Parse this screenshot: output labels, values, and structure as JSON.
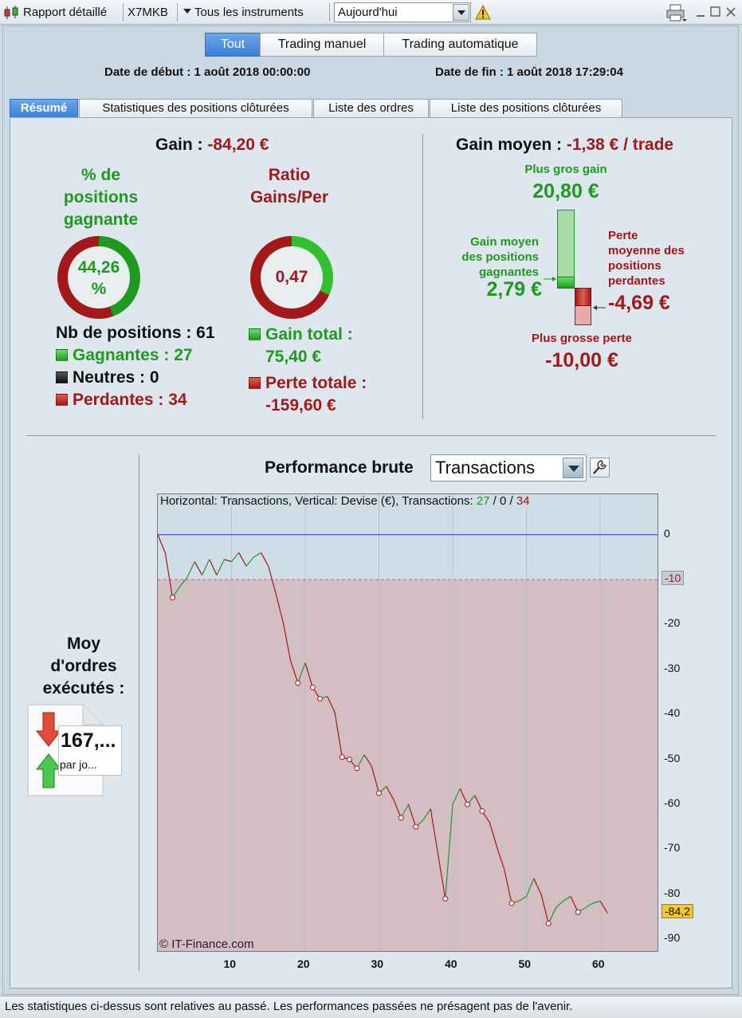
{
  "toolbar": {
    "report_label": "Rapport détaillé",
    "account": "X7MKB",
    "instruments": "Tous les instruments",
    "period_value": "Aujourd'hui"
  },
  "filters": [
    "Tout",
    "Trading manuel",
    "Trading automatique"
  ],
  "dates": {
    "start": "Date de début : 1 août 2018 00:00:00",
    "end": "Date de fin : 1 août 2018 17:29:04"
  },
  "tabs": [
    "Résumé",
    "Statistiques des positions clôturées",
    "Liste des ordres",
    "Liste des positions clôturées"
  ],
  "summary": {
    "gain_label": "Gain : ",
    "gain_value": "-84,20 €",
    "win_pct_title_1": "% de",
    "win_pct_title_2": "positions",
    "win_pct_title_3": "gagnante",
    "win_pct_value_1": "44,26",
    "win_pct_value_2": "%",
    "win_pct": 44.26,
    "ratio_title_1": "Ratio",
    "ratio_title_2": "Gains/Per",
    "ratio_value": "0,47",
    "ratio": 0.47,
    "positions_label": "Nb de positions : 61",
    "winners": "Gagnantes : 27",
    "neutral": "Neutres : 0",
    "losers": "Perdantes : 34",
    "total_gain_1": "Gain total :",
    "total_gain_2": "75,40 €",
    "total_loss_1": "Perte totale :",
    "total_loss_2": "-159,60 €"
  },
  "average": {
    "label": "Gain moyen : ",
    "value": "-1,38 € / trade",
    "biggest_gain_label": "Plus gros gain",
    "biggest_gain_value": "20,80 €",
    "avg_win_label_1": "Gain moyen",
    "avg_win_label_2": "des positions",
    "avg_win_label_3": "gagnantes",
    "avg_win_value": "2,79 €",
    "avg_loss_label_1": "Perte",
    "avg_loss_label_2": "moyenne des",
    "avg_loss_label_3": "positions",
    "avg_loss_label_4": "perdantes",
    "avg_loss_value": "-4,69 €",
    "biggest_loss_label": "Plus grosse perte",
    "biggest_loss_value": "-10,00 €"
  },
  "orders": {
    "label_1": "Moy",
    "label_2": "d'ordres",
    "label_3": "exécutés :",
    "value": "167,...",
    "unit": "par jo..."
  },
  "performance": {
    "title": "Performance brute",
    "mode": "Transactions",
    "header_prefix": "Horizontal: Transactions, Vertical: Devise (€), Transactions: ",
    "header_win": "27",
    "header_sep1": " / ",
    "header_neutral": "0",
    "header_sep2": " / ",
    "header_loss": "34",
    "watermark": "© IT-Finance.com",
    "threshold_tag": "-10",
    "last_tag": "-84,2"
  },
  "colors": {
    "gain": "#1f9a1f",
    "loss": "#a31818",
    "accent": "#3d7fd6",
    "loss_zone": "#d3bec4"
  },
  "chart_data": {
    "type": "line",
    "xlabel": "",
    "ylabel": "",
    "x_ticks": [
      10,
      20,
      30,
      40,
      50,
      60
    ],
    "y_ticks": [
      0,
      -10,
      -20,
      -30,
      -40,
      -50,
      -60,
      -70,
      -80,
      -90
    ],
    "xlim": [
      0,
      68
    ],
    "ylim": [
      -93,
      9
    ],
    "zero_line": 0,
    "loss_threshold": -10,
    "series": [
      {
        "values": [
          [
            0,
            0
          ],
          [
            1,
            -4
          ],
          [
            2,
            -14
          ],
          [
            3,
            -11.5
          ],
          [
            4,
            -9.5
          ],
          [
            5,
            -6
          ],
          [
            6,
            -9
          ],
          [
            7,
            -5.5
          ],
          [
            8,
            -9
          ],
          [
            9,
            -5.5
          ],
          [
            10,
            -6
          ],
          [
            11,
            -4
          ],
          [
            12,
            -7
          ],
          [
            13,
            -5
          ],
          [
            14,
            -4
          ],
          [
            15,
            -7
          ],
          [
            16,
            -13
          ],
          [
            17,
            -19.5
          ],
          [
            18,
            -28
          ],
          [
            19,
            -33
          ],
          [
            20,
            -28.5
          ],
          [
            21,
            -34
          ],
          [
            22,
            -36.5
          ],
          [
            23,
            -36
          ],
          [
            24,
            -39.5
          ],
          [
            25,
            -49.5
          ],
          [
            26,
            -50
          ],
          [
            27,
            -52
          ],
          [
            28,
            -49
          ],
          [
            29,
            -51.5
          ],
          [
            30,
            -57.5
          ],
          [
            31,
            -56
          ],
          [
            32,
            -59
          ],
          [
            33,
            -63
          ],
          [
            34,
            -60
          ],
          [
            35,
            -65
          ],
          [
            36,
            -63.5
          ],
          [
            37,
            -61
          ],
          [
            38,
            -71
          ],
          [
            39,
            -81
          ],
          [
            40,
            -60
          ],
          [
            41,
            -56.5
          ],
          [
            42,
            -60
          ],
          [
            43,
            -58
          ],
          [
            44,
            -61.5
          ],
          [
            45,
            -64
          ],
          [
            46,
            -69.5
          ],
          [
            47,
            -74.5
          ],
          [
            48,
            -82
          ],
          [
            49,
            -81.5
          ],
          [
            50,
            -80.5
          ],
          [
            51,
            -76.5
          ],
          [
            52,
            -80
          ],
          [
            53,
            -86.5
          ],
          [
            54,
            -83
          ],
          [
            55,
            -81.5
          ],
          [
            56,
            -80.5
          ],
          [
            57,
            -84
          ],
          [
            58,
            -83
          ],
          [
            59,
            -82
          ],
          [
            60,
            -81.5
          ],
          [
            61,
            -84.2
          ]
        ]
      }
    ]
  }
}
